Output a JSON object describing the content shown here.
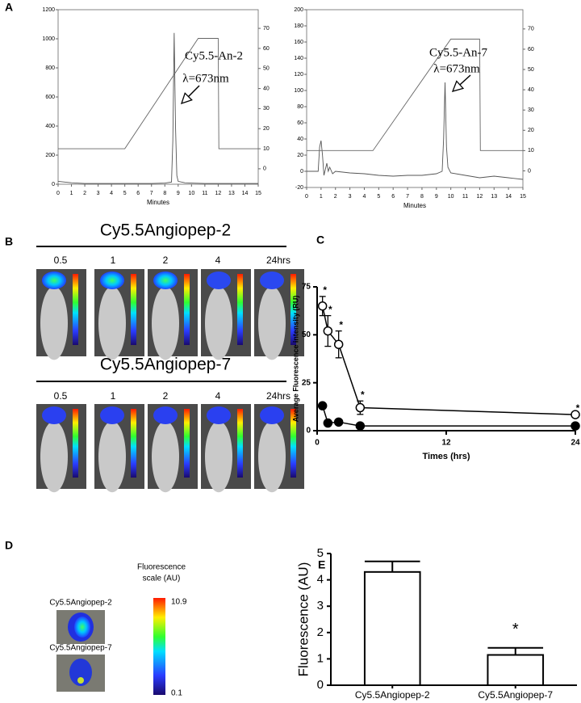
{
  "panel_labels": [
    "A",
    "B",
    "C",
    "D",
    "E"
  ],
  "panel_b": {
    "rows": [
      {
        "title": "Cy5.5Angiopep-2",
        "times": [
          "0.5",
          "1",
          "2",
          "4",
          "24hrs"
        ]
      },
      {
        "title": "Cy5.5Angiopep-7",
        "times": [
          "0.5",
          "1",
          "2",
          "4",
          "24hrs"
        ]
      }
    ]
  },
  "panel_d": {
    "scale_title": [
      "Fluorescence",
      "scale (AU)"
    ],
    "scale_max": 10.9,
    "scale_min": 0.1,
    "samples": [
      "Cy5.5Angiopep-2",
      "Cy5.5Angiopep-7"
    ]
  },
  "chart_data": [
    {
      "type": "line",
      "xlabel": "Minutes",
      "xlim": [
        0,
        15
      ],
      "xticks": [
        0,
        1,
        2,
        3,
        4,
        5,
        6,
        7,
        8,
        9,
        10,
        11,
        12,
        13,
        14,
        15
      ],
      "ylim": [
        0,
        1200
      ],
      "yticks": [
        0,
        200,
        400,
        600,
        800,
        1000,
        1200
      ],
      "y2lim": [
        -7.7,
        79.3
      ],
      "y2ticks": [
        0,
        10,
        20,
        30,
        40,
        50,
        60,
        70
      ],
      "annotations": [
        "Cy5.5-An-2",
        "λ=673nm"
      ],
      "series": [
        {
          "color": "#555555",
          "x": [
            0,
            1,
            2,
            3,
            4,
            5,
            6,
            7,
            8,
            8.5,
            8.6,
            8.7,
            8.8,
            8.9,
            9,
            9.5,
            10,
            11,
            12,
            13,
            14,
            15
          ],
          "values": [
            20,
            10,
            5,
            5,
            5,
            5,
            5,
            5,
            8,
            15,
            300,
            1040,
            400,
            60,
            20,
            10,
            8,
            5,
            5,
            5,
            5,
            5
          ]
        },
        {
          "color": "#666666",
          "axis": "y2",
          "x": [
            0,
            5,
            10.5,
            12,
            12.05,
            15
          ],
          "values": [
            10,
            10,
            65,
            65,
            10,
            10
          ]
        }
      ]
    },
    {
      "type": "line",
      "xlabel": "Minutes",
      "xlim": [
        0,
        15
      ],
      "xticks": [
        0,
        1,
        2,
        3,
        4,
        5,
        6,
        7,
        8,
        9,
        10,
        11,
        12,
        13,
        14,
        15
      ],
      "ylim": [
        -20,
        200
      ],
      "yticks": [
        -20,
        0,
        20,
        40,
        60,
        80,
        100,
        120,
        140,
        160,
        180,
        200
      ],
      "y2lim": [
        -8.2,
        79.5
      ],
      "y2ticks": [
        0,
        10,
        20,
        30,
        40,
        50,
        60,
        70
      ],
      "annotations": [
        "Cy5.5-An-7",
        "λ=673nm"
      ],
      "series": [
        {
          "color": "#555555",
          "x": [
            0,
            0.8,
            0.9,
            1,
            1.1,
            1.2,
            1.4,
            1.5,
            1.6,
            1.8,
            2,
            3,
            4,
            5,
            6,
            7,
            8,
            9,
            9.4,
            9.5,
            9.6,
            9.7,
            9.8,
            10,
            11,
            12,
            13,
            14,
            15
          ],
          "values": [
            0,
            0,
            30,
            38,
            20,
            -5,
            10,
            0,
            5,
            -3,
            0,
            -2,
            -3,
            -5,
            -6,
            -5,
            -5,
            -3,
            0,
            40,
            110,
            30,
            5,
            -2,
            -5,
            -8,
            -6,
            -8,
            -10
          ]
        },
        {
          "color": "#666666",
          "axis": "y2",
          "x": [
            0,
            4.6,
            10,
            12,
            12.05,
            15
          ],
          "values": [
            10,
            10,
            65,
            65,
            10,
            10
          ]
        }
      ]
    },
    {
      "type": "scatter",
      "xlabel": "Times (hrs)",
      "ylabel": "Average Fluorescence intensity (RU)",
      "xlim": [
        0,
        24
      ],
      "xticks": [
        0,
        12,
        24
      ],
      "ylim": [
        0,
        75
      ],
      "yticks": [
        0,
        25,
        50,
        75
      ],
      "series": [
        {
          "marker": "open",
          "color": "#000000",
          "x": [
            0.5,
            1,
            2,
            4,
            24
          ],
          "values": [
            65,
            52,
            45,
            12,
            8.4
          ],
          "errors": [
            5,
            8,
            7,
            3.5,
            0
          ],
          "annotations": [
            "*",
            "*",
            "*",
            "*",
            "*"
          ]
        },
        {
          "marker": "filled",
          "color": "#000000",
          "x": [
            0.5,
            1,
            2,
            4,
            24
          ],
          "values": [
            13,
            4,
            4.5,
            2.5,
            2.5
          ]
        }
      ]
    },
    {
      "type": "bar",
      "ylabel": "Fluorescence (AU)",
      "categories": [
        "Cy5.5Angiopep-2",
        "Cy5.5Angiopep-7"
      ],
      "values": [
        4.3,
        1.15
      ],
      "errors": [
        0.4,
        0.27
      ],
      "annotations": [
        null,
        "*"
      ],
      "color": "#ffffff",
      "edgecolor": "#000000",
      "ylim": [
        0,
        5
      ],
      "yticks": [
        0,
        1,
        2,
        3,
        4,
        5
      ]
    }
  ]
}
